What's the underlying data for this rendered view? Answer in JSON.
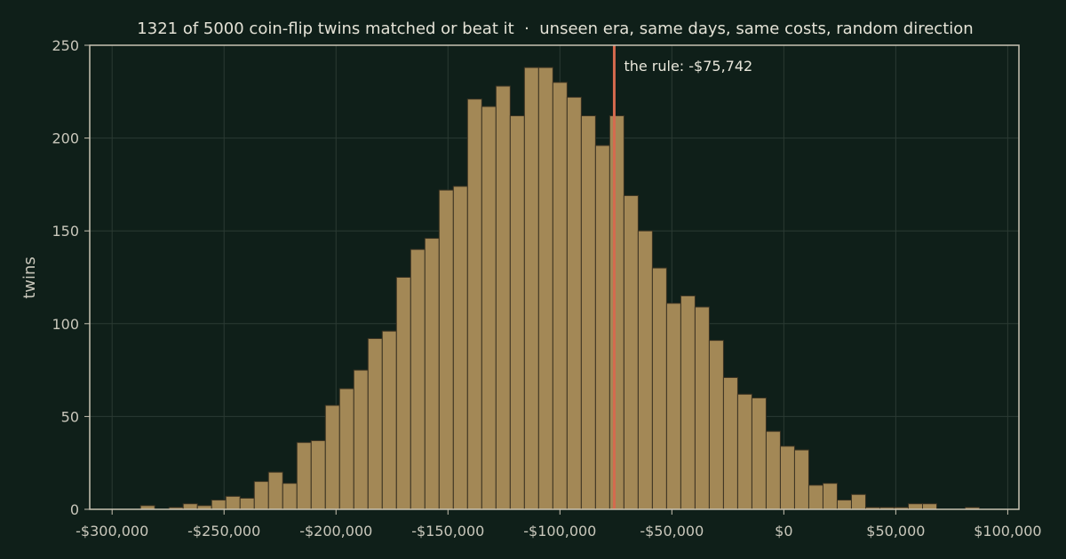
{
  "chart_data": {
    "type": "bar",
    "title": "1321 of 5000 coin-flip twins matched or beat it  ·  unseen era, same days, same costs, random direction",
    "xlabel": "",
    "ylabel": "twins",
    "xlim": [
      -310000,
      105000
    ],
    "ylim": [
      0,
      250
    ],
    "grid": true,
    "x_ticks": [
      {
        "value": -300000,
        "label": "-$300,000"
      },
      {
        "value": -250000,
        "label": "-$250,000"
      },
      {
        "value": -200000,
        "label": "-$200,000"
      },
      {
        "value": -150000,
        "label": "-$150,000"
      },
      {
        "value": -100000,
        "label": "-$100,000"
      },
      {
        "value": -50000,
        "label": "-$50,000"
      },
      {
        "value": 0,
        "label": "$0"
      },
      {
        "value": 50000,
        "label": "$50,000"
      },
      {
        "value": 100000,
        "label": "$100,000"
      }
    ],
    "y_ticks": [
      {
        "value": 0,
        "label": "0"
      },
      {
        "value": 50,
        "label": "50"
      },
      {
        "value": 100,
        "label": "100"
      },
      {
        "value": 150,
        "label": "150"
      },
      {
        "value": 200,
        "label": "200"
      },
      {
        "value": 250,
        "label": "250"
      }
    ],
    "bins": {
      "start": -300000,
      "width": 6350,
      "counts": [
        0,
        0,
        2,
        0,
        1,
        3,
        2,
        5,
        7,
        6,
        15,
        20,
        14,
        36,
        37,
        56,
        65,
        75,
        92,
        96,
        125,
        140,
        146,
        172,
        174,
        221,
        217,
        228,
        212,
        238,
        238,
        230,
        222,
        212,
        196,
        212,
        169,
        150,
        130,
        111,
        115,
        109,
        91,
        71,
        62,
        60,
        42,
        34,
        32,
        13,
        14,
        5,
        8,
        1,
        1,
        1,
        3,
        3,
        0,
        0,
        1,
        0
      ]
    },
    "marker": {
      "value": -75742,
      "label": "the rule: -$75,742",
      "color": "#d56a4e"
    },
    "colors": {
      "bar": "#a38856",
      "background": "#0f1f19"
    }
  }
}
